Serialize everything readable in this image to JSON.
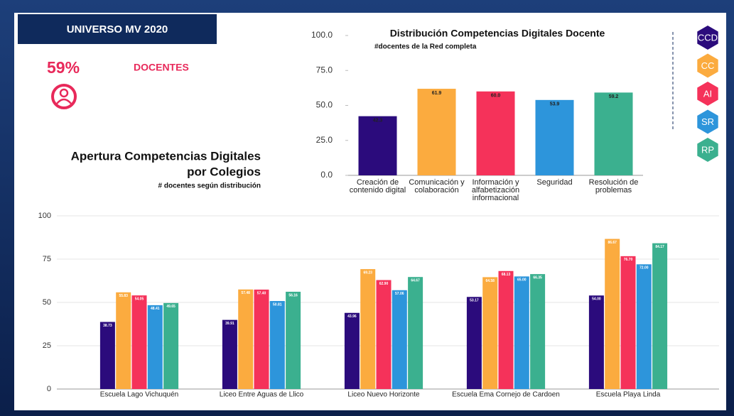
{
  "header": {
    "title": "UNIVERSO MV 2020",
    "stat": "59%",
    "label": "DOCENTES"
  },
  "chart_data": [
    {
      "type": "bar",
      "title": "Distribución Competencias Digitales Docente",
      "subtitle": "#docentes de la Red completa",
      "categories": [
        "Creación de contenido digital",
        "Comunicación y colaboración",
        "Información y alfabetización informacional",
        "Seguridad",
        "Resolución de problemas"
      ],
      "values": [
        42.3,
        61.9,
        60.0,
        53.9,
        59.2
      ],
      "value_labels": [
        "42.3",
        "61.9",
        "60.0",
        "53.9",
        "59.2"
      ],
      "colors": [
        "#2b0b7c",
        "#fbab3f",
        "#f5325a",
        "#2d95db",
        "#3bb08f"
      ],
      "ylim": [
        0,
        100
      ],
      "yticks": [
        {
          "value": 0,
          "label": "0.0"
        },
        {
          "value": 25,
          "label": "25.0"
        },
        {
          "value": 50,
          "label": "50.0"
        },
        {
          "value": 75,
          "label": "75.0"
        },
        {
          "value": 100,
          "label": "100.0"
        }
      ],
      "grid": false
    },
    {
      "type": "grouped_bar",
      "title": "Apertura Competencias Digitales",
      "title2": "por Colegios",
      "subtitle": "# docentes según distribución",
      "categories": [
        "Escuela Lago Vichuquén",
        "Liceo Entre Aguas de Llico",
        "Liceo Nuevo Horizonte",
        "Escuela Ema Cornejo de Cardoen",
        "Escuela Playa Linda"
      ],
      "series": [
        {
          "name": "CCD",
          "color": "#2b0b7c",
          "values": [
            38.73,
            39.91,
            43.96,
            53.17,
            54.0
          ],
          "value_labels": [
            "38.73",
            "39.91",
            "43.96",
            "53.17",
            "54.00"
          ]
        },
        {
          "name": "CC",
          "color": "#fbab3f",
          "values": [
            55.83,
            57.48,
            69.23,
            64.58,
            86.67
          ],
          "value_labels": [
            "55.83",
            "57.48",
            "69.23",
            "64.58",
            "86.67"
          ]
        },
        {
          "name": "AI",
          "color": "#f5325a",
          "values": [
            54.05,
            57.4,
            62.9,
            68.13,
            76.7
          ],
          "value_labels": [
            "54.05",
            "57.40",
            "62.90",
            "68.13",
            "76.70"
          ]
        },
        {
          "name": "SR",
          "color": "#2d95db",
          "values": [
            48.41,
            50.81,
            57.06,
            65.0,
            72.0
          ],
          "value_labels": [
            "48.41",
            "50.81",
            "57.06",
            "65.00",
            "72.00"
          ]
        },
        {
          "name": "RP",
          "color": "#3bb08f",
          "values": [
            49.65,
            56.16,
            64.67,
            66.35,
            84.17
          ],
          "value_labels": [
            "49.65",
            "56.16",
            "64.67",
            "66.35",
            "84.17"
          ]
        }
      ],
      "ylim": [
        0,
        100
      ],
      "yticks": [
        0,
        25,
        50,
        75,
        100
      ],
      "grid": true
    }
  ]
}
